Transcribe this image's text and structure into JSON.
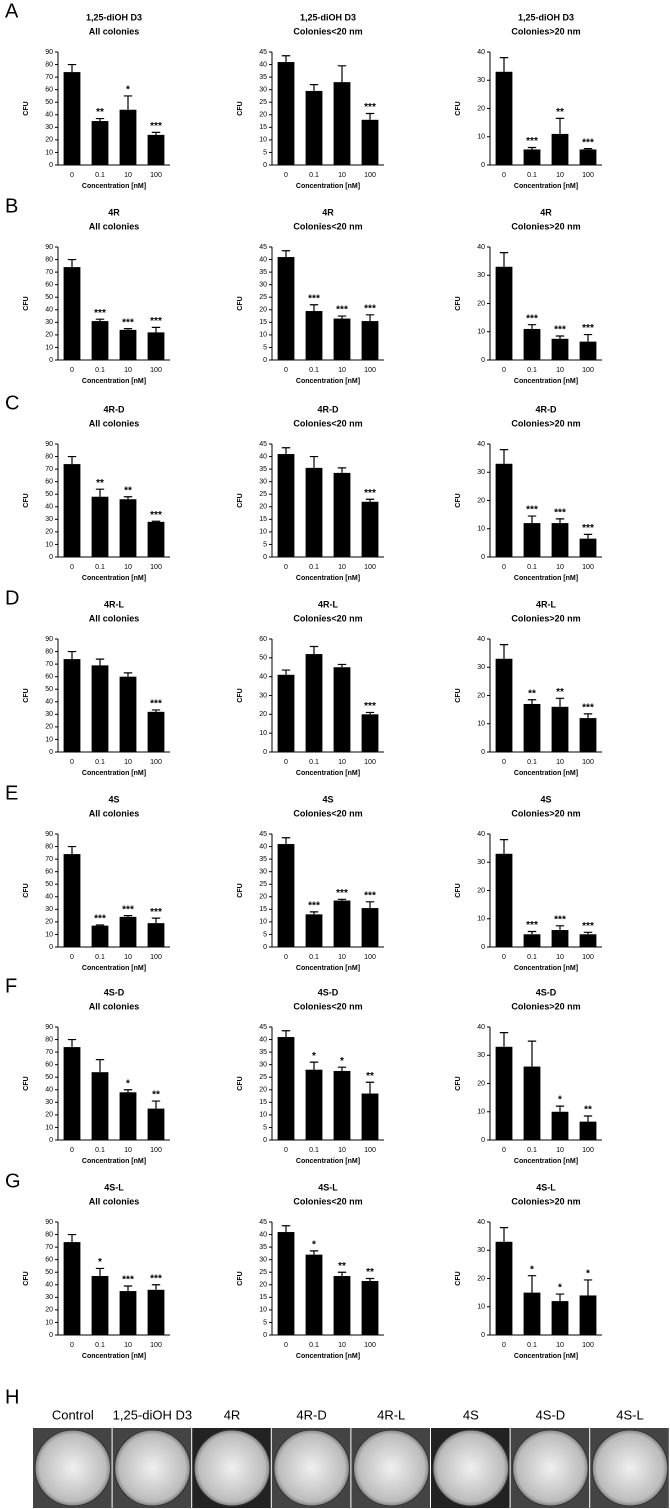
{
  "panel_labels": [
    "A",
    "B",
    "C",
    "D",
    "E",
    "F",
    "G",
    "H"
  ],
  "chart_data": [
    {
      "type": "bar",
      "title": "1,25-diOH D3",
      "subtitle": "All colonies",
      "ylabel": "CFU",
      "xlabel": "Concentration [nM]",
      "categories": [
        "0",
        "0.1",
        "10",
        "100"
      ],
      "values": [
        74,
        35,
        44,
        24
      ],
      "errors": [
        6,
        2,
        11,
        2
      ],
      "annotations": [
        null,
        "**",
        "*",
        "***"
      ],
      "color": "#000000",
      "ylim": [
        0,
        90
      ],
      "yticks": [
        0,
        10,
        20,
        30,
        40,
        50,
        60,
        70,
        80,
        90
      ]
    },
    {
      "type": "bar",
      "title": "1,25-diOH D3",
      "subtitle": "Colonies<20 nm",
      "ylabel": "CFU",
      "xlabel": "Concentration [nM]",
      "categories": [
        "0",
        "0.1",
        "10",
        "100"
      ],
      "values": [
        41,
        29.5,
        33,
        18
      ],
      "errors": [
        2.5,
        2.5,
        6.5,
        2.5
      ],
      "annotations": [
        null,
        null,
        null,
        "***"
      ],
      "color": "#000000",
      "ylim": [
        0,
        45
      ],
      "yticks": [
        0,
        5,
        10,
        15,
        20,
        25,
        30,
        35,
        40,
        45
      ]
    },
    {
      "type": "bar",
      "title": "1,25-diOH D3",
      "subtitle": "Colonies>20 nm",
      "ylabel": "CFU",
      "xlabel": "Concentration [nM]",
      "categories": [
        "0",
        "0.1",
        "10",
        "100"
      ],
      "values": [
        33,
        5.5,
        11,
        5.5
      ],
      "errors": [
        5,
        0.7,
        5.5,
        0.3
      ],
      "annotations": [
        null,
        "***",
        "**",
        "***"
      ],
      "color": "#000000",
      "ylim": [
        0,
        40
      ],
      "yticks": [
        0,
        10,
        20,
        30,
        40
      ]
    },
    {
      "type": "bar",
      "title": "4R",
      "subtitle": "All colonies",
      "ylabel": "CFU",
      "xlabel": "Concentration [nM]",
      "categories": [
        "0",
        "0.1",
        "10",
        "100"
      ],
      "values": [
        74,
        31,
        24,
        22
      ],
      "errors": [
        6,
        1.5,
        1,
        4
      ],
      "annotations": [
        null,
        "***",
        "***",
        "***"
      ],
      "color": "#000000",
      "ylim": [
        0,
        90
      ],
      "yticks": [
        0,
        10,
        20,
        30,
        40,
        50,
        60,
        70,
        80,
        90
      ]
    },
    {
      "type": "bar",
      "title": "4R",
      "subtitle": "Colonies<20 nm",
      "ylabel": "CFU",
      "xlabel": "Concentration [nM]",
      "categories": [
        "0",
        "0.1",
        "10",
        "100"
      ],
      "values": [
        41,
        19.5,
        16.5,
        15.5
      ],
      "errors": [
        2.5,
        2.5,
        1,
        2.5
      ],
      "annotations": [
        null,
        "***",
        "***",
        "***"
      ],
      "color": "#000000",
      "ylim": [
        0,
        45
      ],
      "yticks": [
        0,
        5,
        10,
        15,
        20,
        25,
        30,
        35,
        40,
        45
      ]
    },
    {
      "type": "bar",
      "title": "4R",
      "subtitle": "Colonies>20 nm",
      "ylabel": "CFU",
      "xlabel": "Concentration [nM]",
      "categories": [
        "0",
        "0.1",
        "10",
        "100"
      ],
      "values": [
        33,
        11,
        7.5,
        6.5
      ],
      "errors": [
        5,
        1.5,
        1,
        2.5
      ],
      "annotations": [
        null,
        "***",
        "***",
        "***"
      ],
      "color": "#000000",
      "ylim": [
        0,
        40
      ],
      "yticks": [
        0,
        10,
        20,
        30,
        40
      ]
    },
    {
      "type": "bar",
      "title": "4R-D",
      "subtitle": "All colonies",
      "ylabel": "CFU",
      "xlabel": "Concentration [nM]",
      "categories": [
        "0",
        "0.1",
        "10",
        "100"
      ],
      "values": [
        74,
        48,
        46,
        28
      ],
      "errors": [
        6,
        6,
        2,
        0.5
      ],
      "annotations": [
        null,
        "**",
        "**",
        "***"
      ],
      "color": "#000000",
      "ylim": [
        0,
        90
      ],
      "yticks": [
        0,
        10,
        20,
        30,
        40,
        50,
        60,
        70,
        80,
        90
      ]
    },
    {
      "type": "bar",
      "title": "4R-D",
      "subtitle": "Colonies<20 nm",
      "ylabel": "CFU",
      "xlabel": "Concentration [nM]",
      "categories": [
        "0",
        "0.1",
        "10",
        "100"
      ],
      "values": [
        41,
        35.5,
        33.5,
        22
      ],
      "errors": [
        2.5,
        4.5,
        2,
        1
      ],
      "annotations": [
        null,
        null,
        null,
        "***"
      ],
      "color": "#000000",
      "ylim": [
        0,
        45
      ],
      "yticks": [
        0,
        5,
        10,
        15,
        20,
        25,
        30,
        35,
        40,
        45
      ]
    },
    {
      "type": "bar",
      "title": "4R-D",
      "subtitle": "Colonies>20 nm",
      "ylabel": "CFU",
      "xlabel": "Concentration [nM]",
      "categories": [
        "0",
        "0.1",
        "10",
        "100"
      ],
      "values": [
        33,
        12,
        12,
        6.5
      ],
      "errors": [
        5,
        2.5,
        1.5,
        1.5
      ],
      "annotations": [
        null,
        "***",
        "***",
        "***"
      ],
      "color": "#000000",
      "ylim": [
        0,
        40
      ],
      "yticks": [
        0,
        10,
        20,
        30,
        40
      ]
    },
    {
      "type": "bar",
      "title": "4R-L",
      "subtitle": "All colonies",
      "ylabel": "CFU",
      "xlabel": "Concentration [nM]",
      "categories": [
        "0",
        "0.1",
        "10",
        "100"
      ],
      "values": [
        74,
        69,
        60,
        32
      ],
      "errors": [
        6,
        5,
        3,
        1.5
      ],
      "annotations": [
        null,
        null,
        null,
        "***"
      ],
      "color": "#000000",
      "ylim": [
        0,
        90
      ],
      "yticks": [
        0,
        10,
        20,
        30,
        40,
        50,
        60,
        70,
        80,
        90
      ]
    },
    {
      "type": "bar",
      "title": "4R-L",
      "subtitle": "Colonies<20 nm",
      "ylabel": "CFU",
      "xlabel": "Concentration [nM]",
      "categories": [
        "0",
        "0.1",
        "10",
        "100"
      ],
      "values": [
        41,
        52,
        45,
        20
      ],
      "errors": [
        2.5,
        4,
        1.5,
        1
      ],
      "annotations": [
        null,
        null,
        null,
        "***"
      ],
      "color": "#000000",
      "ylim": [
        0,
        60
      ],
      "yticks": [
        0,
        10,
        20,
        30,
        40,
        50,
        60
      ]
    },
    {
      "type": "bar",
      "title": "4R-L",
      "subtitle": "Colonies>20 nm",
      "ylabel": "CFU",
      "xlabel": "Concentration [nM]",
      "categories": [
        "0",
        "0.1",
        "10",
        "100"
      ],
      "values": [
        33,
        17,
        16,
        12
      ],
      "errors": [
        5,
        1.5,
        3,
        1.5
      ],
      "annotations": [
        null,
        "**",
        "**",
        "***"
      ],
      "color": "#000000",
      "ylim": [
        0,
        40
      ],
      "yticks": [
        0,
        10,
        20,
        30,
        40
      ]
    },
    {
      "type": "bar",
      "title": "4S",
      "subtitle": "All colonies",
      "ylabel": "CFU",
      "xlabel": "Concentration [nM]",
      "categories": [
        "0",
        "0.1",
        "10",
        "100"
      ],
      "values": [
        74,
        17,
        24,
        19
      ],
      "errors": [
        6,
        0.5,
        1,
        4
      ],
      "annotations": [
        null,
        "***",
        "***",
        "***"
      ],
      "color": "#000000",
      "ylim": [
        0,
        90
      ],
      "yticks": [
        0,
        10,
        20,
        30,
        40,
        50,
        60,
        70,
        80,
        90
      ]
    },
    {
      "type": "bar",
      "title": "4S",
      "subtitle": "Colonies<20 nm",
      "ylabel": "CFU",
      "xlabel": "Concentration [nM]",
      "categories": [
        "0",
        "0.1",
        "10",
        "100"
      ],
      "values": [
        41,
        13,
        18.5,
        15.5
      ],
      "errors": [
        2.5,
        1,
        0.5,
        2.5
      ],
      "annotations": [
        null,
        "***",
        "***",
        "***"
      ],
      "color": "#000000",
      "ylim": [
        0,
        45
      ],
      "yticks": [
        0,
        5,
        10,
        15,
        20,
        25,
        30,
        35,
        40,
        45
      ]
    },
    {
      "type": "bar",
      "title": "4S",
      "subtitle": "Colonies>20 nm",
      "ylabel": "CFU",
      "xlabel": "Concentration [nM]",
      "categories": [
        "0",
        "0.1",
        "10",
        "100"
      ],
      "values": [
        33,
        4.5,
        6,
        4.5
      ],
      "errors": [
        5,
        1,
        1.5,
        0.7
      ],
      "annotations": [
        null,
        "***",
        "***",
        "***"
      ],
      "color": "#000000",
      "ylim": [
        0,
        40
      ],
      "yticks": [
        0,
        10,
        20,
        30,
        40
      ]
    },
    {
      "type": "bar",
      "title": "4S-D",
      "subtitle": "All colonies",
      "ylabel": "CFU",
      "xlabel": "Concentration [nM]",
      "categories": [
        "0",
        "0.1",
        "10",
        "100"
      ],
      "values": [
        74,
        54,
        38,
        25
      ],
      "errors": [
        6,
        10,
        2,
        6
      ],
      "annotations": [
        null,
        null,
        "*",
        "**"
      ],
      "color": "#000000",
      "ylim": [
        0,
        90
      ],
      "yticks": [
        0,
        10,
        20,
        30,
        40,
        50,
        60,
        70,
        80,
        90
      ]
    },
    {
      "type": "bar",
      "title": "4S-D",
      "subtitle": "Colonies<20 nm",
      "ylabel": "CFU",
      "xlabel": "Concentration [nM]",
      "categories": [
        "0",
        "0.1",
        "10",
        "100"
      ],
      "values": [
        41,
        28,
        27.5,
        18.5
      ],
      "errors": [
        2.5,
        3,
        1.5,
        4.5
      ],
      "annotations": [
        null,
        "*",
        "*",
        "**"
      ],
      "color": "#000000",
      "ylim": [
        0,
        45
      ],
      "yticks": [
        0,
        5,
        10,
        15,
        20,
        25,
        30,
        35,
        40,
        45
      ]
    },
    {
      "type": "bar",
      "title": "4S-D",
      "subtitle": "Colonies>20 nm",
      "ylabel": "CFU",
      "xlabel": "Concentration [nM]",
      "categories": [
        "0",
        "0.1",
        "10",
        "100"
      ],
      "values": [
        33,
        26,
        10,
        6.5
      ],
      "errors": [
        5,
        9,
        2,
        2
      ],
      "annotations": [
        null,
        null,
        "*",
        "**"
      ],
      "color": "#000000",
      "ylim": [
        0,
        40
      ],
      "yticks": [
        0,
        10,
        20,
        30,
        40
      ]
    },
    {
      "type": "bar",
      "title": "4S-L",
      "subtitle": "All colonies",
      "ylabel": "CFU",
      "xlabel": "Concentration [nM]",
      "categories": [
        "0",
        "0.1",
        "10",
        "100"
      ],
      "values": [
        74,
        47,
        35,
        36
      ],
      "errors": [
        6,
        6,
        4,
        4
      ],
      "annotations": [
        null,
        "*",
        "***",
        "***"
      ],
      "color": "#000000",
      "ylim": [
        0,
        90
      ],
      "yticks": [
        0,
        10,
        20,
        30,
        40,
        50,
        60,
        70,
        80,
        90
      ]
    },
    {
      "type": "bar",
      "title": "4S-L",
      "subtitle": "Colonies<20 nm",
      "ylabel": "CFU",
      "xlabel": "Concentration [nM]",
      "categories": [
        "0",
        "0.1",
        "10",
        "100"
      ],
      "values": [
        41,
        32,
        23.5,
        21.5
      ],
      "errors": [
        2.5,
        1.5,
        1.5,
        1
      ],
      "annotations": [
        null,
        "*",
        "**",
        "**"
      ],
      "color": "#000000",
      "ylim": [
        0,
        45
      ],
      "yticks": [
        0,
        5,
        10,
        15,
        20,
        25,
        30,
        35,
        40,
        45
      ]
    },
    {
      "type": "bar",
      "title": "4S-L",
      "subtitle": "Colonies>20 nm",
      "ylabel": "CFU",
      "xlabel": "Concentration [nM]",
      "categories": [
        "0",
        "0.1",
        "10",
        "100"
      ],
      "values": [
        33,
        15,
        12,
        14
      ],
      "errors": [
        5,
        6,
        2.5,
        5.5
      ],
      "annotations": [
        null,
        "*",
        "*",
        "*"
      ],
      "color": "#000000",
      "ylim": [
        0,
        40
      ],
      "yticks": [
        0,
        10,
        20,
        30,
        40
      ]
    }
  ],
  "plates": [
    "Control",
    "1,25-diOH D3",
    "4R",
    "4R-D",
    "4R-L",
    "4S",
    "4S-D",
    "4S-L"
  ]
}
